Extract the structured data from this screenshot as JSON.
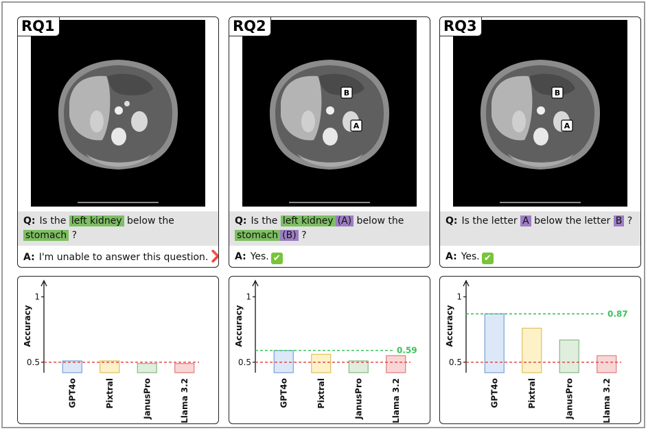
{
  "panels": [
    {
      "label": "RQ1",
      "question": {
        "lead": "Q:",
        "t1": "Is the ",
        "h1": "left kidney",
        "h1b": "",
        "t2": " below the",
        "h2": "stomach",
        "h2b": "",
        "t3": " ?"
      },
      "answer": {
        "lead": "A:",
        "text": "I'm unable to answer this question.",
        "mark": "❌"
      },
      "markers": []
    },
    {
      "label": "RQ2",
      "question": {
        "lead": "Q:",
        "t1": "Is the ",
        "h1": "left kidney",
        "h1b": "(A)",
        "t2": " below the",
        "h2": "stomach",
        "h2b": "(B)",
        "t3": " ?"
      },
      "answer": {
        "lead": "A:",
        "text": "Yes.",
        "mark": "✔"
      },
      "markers": [
        "A",
        "B"
      ]
    },
    {
      "label": "RQ3",
      "question": {
        "lead": "Q:",
        "t1": "Is the letter ",
        "p1": "A",
        "t2": " below the letter ",
        "p2": "B",
        "t3": " ?"
      },
      "answer": {
        "lead": "A:",
        "text": "Yes.",
        "mark": "✔"
      },
      "markers": [
        "A",
        "B"
      ]
    }
  ],
  "colors": {
    "highlight_green": "#7dbf62",
    "highlight_purple": "#9c7dc4",
    "threshold": "#e04848",
    "best_line": "#3cc05a"
  },
  "chart_data": [
    {
      "type": "bar",
      "categories": [
        "GPT4o",
        "Pixtral",
        "JanusPro",
        "Llama 3.2"
      ],
      "values": [
        0.51,
        0.51,
        0.49,
        0.49
      ],
      "ylabel": "Accuracy",
      "yticks": [
        "0.5",
        "1"
      ],
      "ylim": [
        0.42,
        1.05
      ],
      "chance_line": 0.5,
      "best_line": null,
      "best_label": "",
      "bar_fills": [
        "#dce8f8",
        "#fdf1c8",
        "#dfeedd",
        "#f8d6d6"
      ],
      "bar_strokes": [
        "#7a9fd6",
        "#e0bf5a",
        "#86b884",
        "#e07b7b"
      ]
    },
    {
      "type": "bar",
      "categories": [
        "GPT4o",
        "Pixtral",
        "JanusPro",
        "Llama 3.2"
      ],
      "values": [
        0.59,
        0.56,
        0.51,
        0.55
      ],
      "ylabel": "Accuracy",
      "yticks": [
        "0.5",
        "1"
      ],
      "ylim": [
        0.42,
        1.05
      ],
      "chance_line": 0.5,
      "best_line": 0.59,
      "best_label": "0.59",
      "bar_fills": [
        "#dce8f8",
        "#fdf1c8",
        "#dfeedd",
        "#f8d6d6"
      ],
      "bar_strokes": [
        "#7a9fd6",
        "#e0bf5a",
        "#86b884",
        "#e07b7b"
      ]
    },
    {
      "type": "bar",
      "categories": [
        "GPT4o",
        "Pixtral",
        "JanusPro",
        "Llama 3.2"
      ],
      "values": [
        0.87,
        0.76,
        0.67,
        0.55
      ],
      "ylabel": "Accuracy",
      "yticks": [
        "0.5",
        "1"
      ],
      "ylim": [
        0.42,
        1.05
      ],
      "chance_line": 0.5,
      "best_line": 0.87,
      "best_label": "0.87",
      "bar_fills": [
        "#dce8f8",
        "#fdf1c8",
        "#dfeedd",
        "#f8d6d6"
      ],
      "bar_strokes": [
        "#7a9fd6",
        "#e0bf5a",
        "#86b884",
        "#e07b7b"
      ]
    }
  ]
}
